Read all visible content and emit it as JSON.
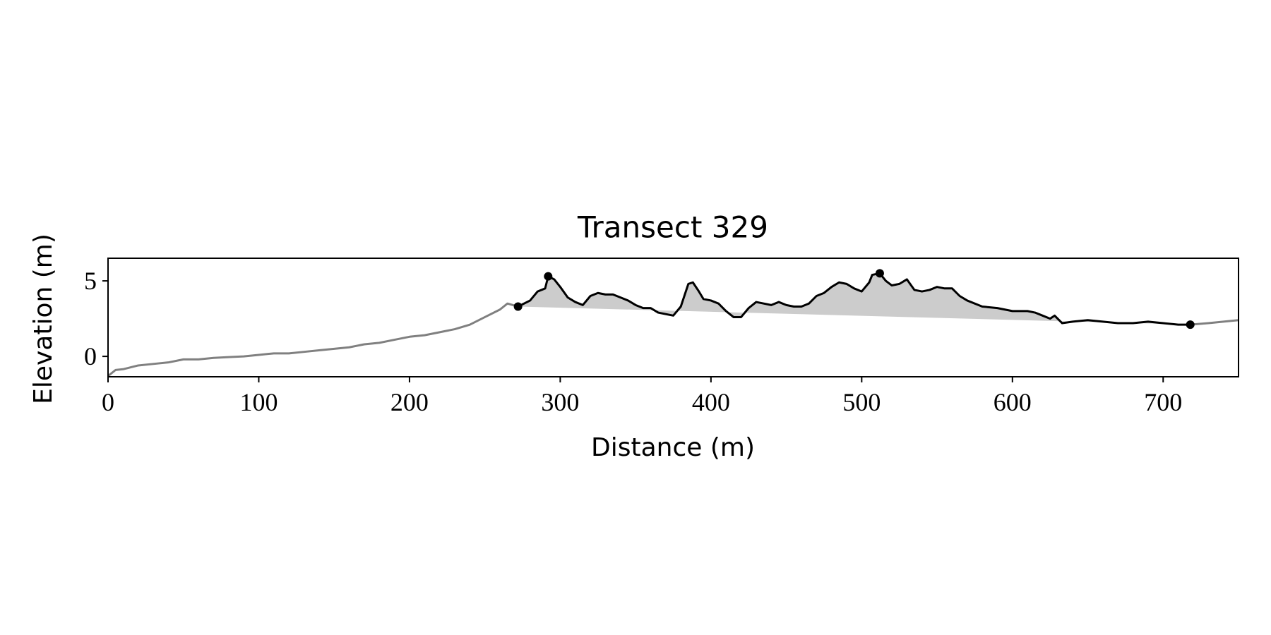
{
  "chart_data": {
    "type": "line",
    "title": "Transect 329",
    "x_label": "Distance (m)",
    "y_label": "Elevation (m)",
    "xlim": [
      0,
      750
    ],
    "ylim": [
      -1.35,
      6.5
    ],
    "xticks": [
      0,
      100,
      200,
      300,
      400,
      500,
      600,
      700
    ],
    "yticks": [
      0,
      5
    ],
    "grid": false,
    "fill_color": "#cccccc",
    "series": [
      {
        "color": "#808080",
        "x": [
          0,
          5,
          10,
          20,
          30,
          40,
          50,
          60,
          70,
          80,
          90,
          100,
          110,
          120,
          130,
          140,
          150,
          160,
          170,
          180,
          190,
          200,
          210,
          220,
          230,
          240,
          250,
          260,
          265,
          272,
          null,
          718,
          730,
          740,
          750
        ],
        "values": [
          -1.3,
          -0.9,
          -0.85,
          -0.6,
          -0.5,
          -0.4,
          -0.2,
          -0.2,
          -0.1,
          -0.05,
          0.0,
          0.1,
          0.2,
          0.2,
          0.3,
          0.4,
          0.5,
          0.6,
          0.8,
          0.9,
          1.1,
          1.3,
          1.4,
          1.6,
          1.8,
          2.1,
          2.6,
          3.1,
          3.5,
          3.3,
          null,
          2.1,
          2.2,
          2.3,
          2.4
        ]
      },
      {
        "color": "#000000",
        "fill": true,
        "x": [
          272,
          280,
          285,
          290,
          292,
          296,
          300,
          305,
          310,
          315,
          320,
          325,
          330,
          335,
          340,
          345,
          350,
          355,
          360,
          365,
          370,
          375,
          380,
          385,
          388,
          392,
          395,
          400,
          405,
          410,
          415,
          420,
          425,
          430,
          435,
          440,
          445,
          450,
          455,
          460,
          465,
          470,
          475,
          480,
          485,
          490,
          495,
          500,
          505,
          507,
          512,
          516,
          520,
          525,
          530,
          535,
          540,
          545,
          550,
          555,
          560,
          565,
          570,
          580,
          590,
          600,
          610,
          615,
          620,
          625,
          628,
          633,
          640,
          650,
          660,
          670,
          680,
          690,
          700,
          710,
          718
        ],
        "values": [
          3.3,
          3.7,
          4.3,
          4.5,
          5.3,
          5.1,
          4.6,
          3.9,
          3.6,
          3.4,
          4.0,
          4.2,
          4.1,
          4.1,
          3.9,
          3.7,
          3.4,
          3.2,
          3.2,
          2.9,
          2.8,
          2.7,
          3.3,
          4.8,
          4.9,
          4.3,
          3.8,
          3.7,
          3.5,
          3.0,
          2.6,
          2.6,
          3.2,
          3.6,
          3.5,
          3.4,
          3.6,
          3.4,
          3.3,
          3.3,
          3.5,
          4.0,
          4.2,
          4.6,
          4.9,
          4.8,
          4.5,
          4.3,
          4.9,
          5.4,
          5.5,
          5.0,
          4.7,
          4.8,
          5.1,
          4.4,
          4.3,
          4.4,
          4.6,
          4.5,
          4.5,
          4.0,
          3.7,
          3.3,
          3.2,
          3.0,
          3.0,
          2.9,
          2.7,
          2.5,
          2.7,
          2.2,
          2.3,
          2.4,
          2.3,
          2.2,
          2.2,
          2.3,
          2.2,
          2.1,
          2.1
        ]
      },
      {
        "color": "#000000",
        "markers_only": true,
        "x": [
          272,
          292,
          512,
          718
        ],
        "values": [
          3.3,
          5.3,
          5.5,
          2.1
        ]
      }
    ]
  }
}
